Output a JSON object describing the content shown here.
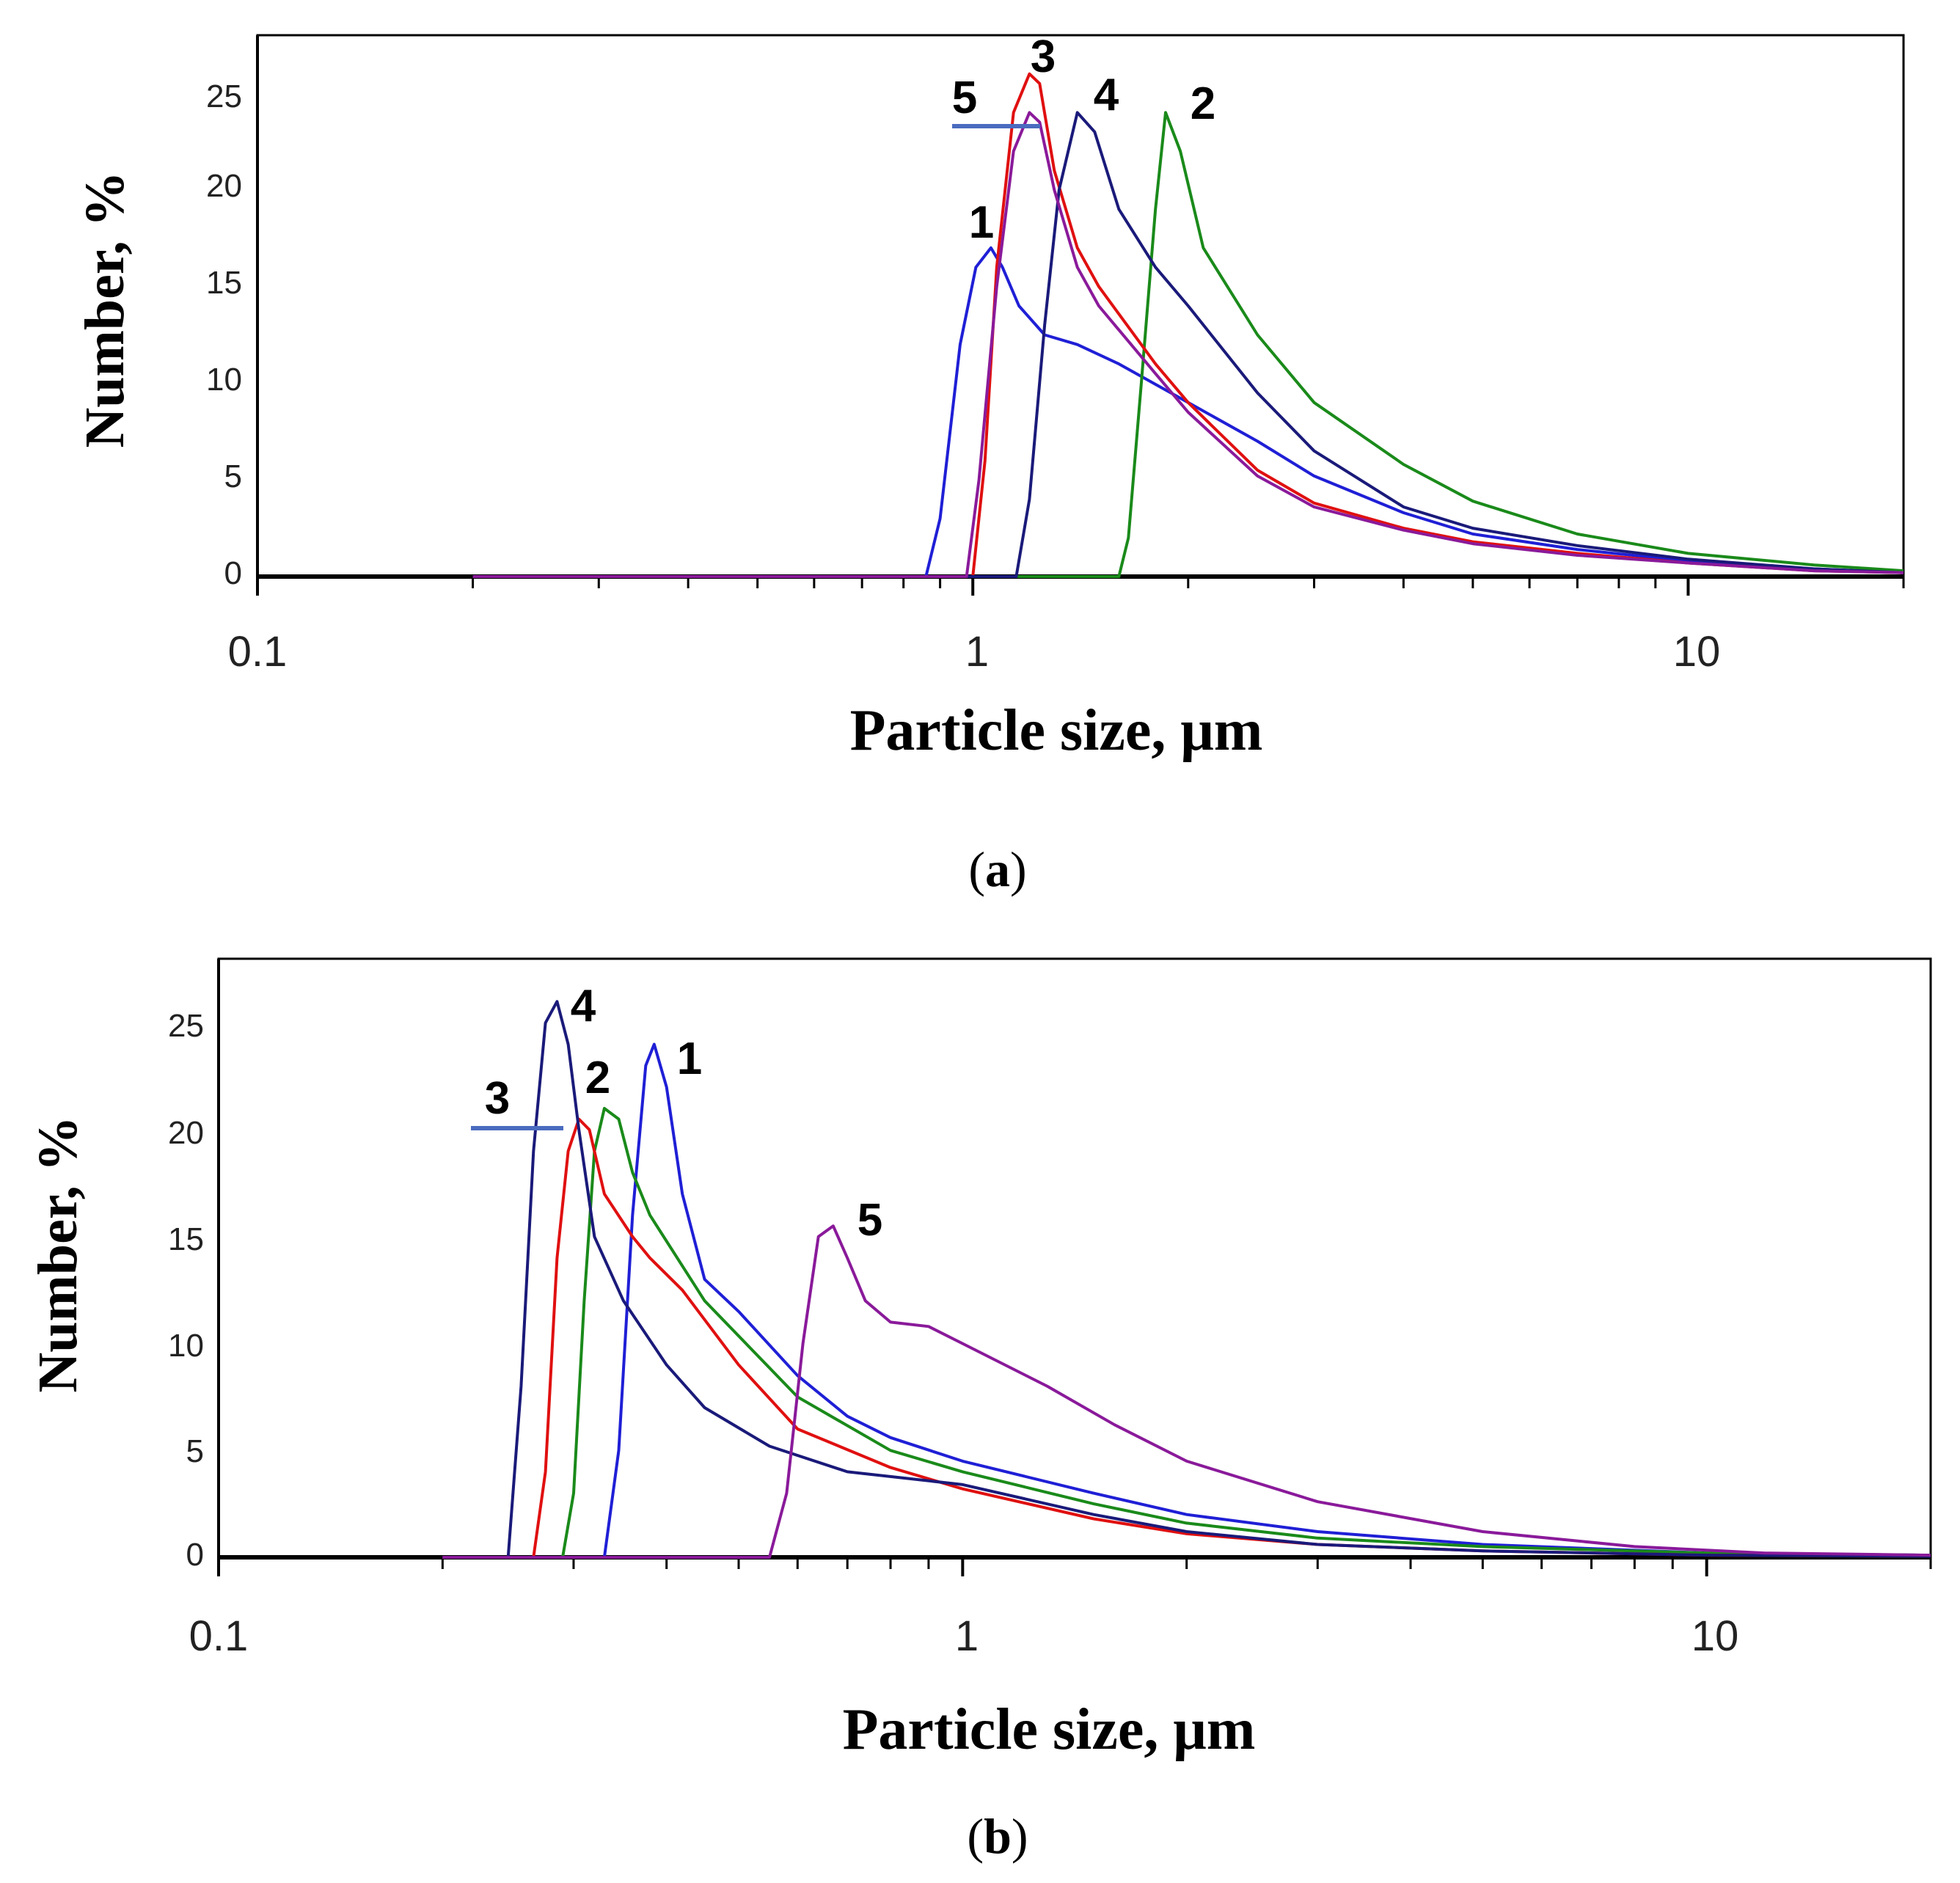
{
  "chart_data": [
    {
      "panel": "a",
      "panel_label": "(a)",
      "panel_label_parts": [
        "(",
        "a",
        ")"
      ],
      "type": "line",
      "xscale": "log",
      "xlabel": "Particle size, μm",
      "ylabel": "Number, %",
      "xlim": [
        0.1,
        20
      ],
      "ylim": [
        0,
        28
      ],
      "xticks": [
        0.1,
        1,
        10
      ],
      "xtick_labels": [
        "0.1",
        "1",
        "10"
      ],
      "yticks": [
        0,
        5,
        10,
        15,
        20,
        25
      ],
      "ytick_labels": [
        "0",
        "5",
        "10",
        "15",
        "20",
        "25"
      ],
      "series": [
        {
          "name": "1",
          "color": "#1f1fd6",
          "x": [
            0.2,
            0.86,
            0.9,
            0.96,
            1.01,
            1.06,
            1.1,
            1.16,
            1.26,
            1.4,
            1.6,
            2.0,
            2.5,
            3.0,
            4.0,
            5.0,
            7.0,
            10,
            15,
            20
          ],
          "y": [
            0,
            0,
            3,
            12,
            16,
            17,
            16,
            14,
            12.5,
            12,
            11,
            9,
            7,
            5.2,
            3.3,
            2.2,
            1.4,
            0.8,
            0.4,
            0.2
          ]
        },
        {
          "name": "2",
          "color": "#1a8a1a",
          "x": [
            0.2,
            1.6,
            1.65,
            1.72,
            1.8,
            1.86,
            1.95,
            2.1,
            2.5,
            3.0,
            4.0,
            5.0,
            7.0,
            10,
            15,
            20
          ],
          "y": [
            0,
            0,
            2,
            10,
            19,
            24,
            22,
            17,
            12.5,
            9,
            5.8,
            3.9,
            2.2,
            1.2,
            0.6,
            0.3
          ]
        },
        {
          "name": "3",
          "color": "#e01010",
          "x": [
            0.2,
            1.0,
            1.04,
            1.08,
            1.14,
            1.2,
            1.24,
            1.3,
            1.4,
            1.5,
            1.8,
            2.0,
            2.5,
            3.0,
            4.0,
            5.0,
            7.0,
            10,
            15,
            20
          ],
          "y": [
            0,
            0,
            6,
            16,
            24,
            26,
            25.5,
            21,
            17,
            15,
            11,
            9,
            5.5,
            3.8,
            2.5,
            1.8,
            1.2,
            0.7,
            0.3,
            0.2
          ]
        },
        {
          "name": "4",
          "color": "#1a1a7a",
          "x": [
            0.2,
            1.15,
            1.2,
            1.26,
            1.32,
            1.4,
            1.48,
            1.6,
            1.8,
            2.0,
            2.5,
            3.0,
            4.0,
            5.0,
            7.0,
            10,
            15,
            20
          ],
          "y": [
            0,
            0,
            4,
            13,
            20,
            24,
            23,
            19,
            16,
            14,
            9.5,
            6.5,
            3.6,
            2.5,
            1.6,
            0.9,
            0.4,
            0.2
          ]
        },
        {
          "name": "5",
          "color": "#8a1a9a",
          "x": [
            0.2,
            0.98,
            1.02,
            1.08,
            1.14,
            1.2,
            1.24,
            1.3,
            1.4,
            1.5,
            1.8,
            2.0,
            2.5,
            3.0,
            4.0,
            5.0,
            7.0,
            10,
            15,
            20
          ],
          "y": [
            0,
            0,
            5,
            15,
            22,
            24,
            23.5,
            20,
            16,
            14,
            10.5,
            8.5,
            5.2,
            3.6,
            2.4,
            1.7,
            1.1,
            0.7,
            0.3,
            0.2
          ]
        }
      ],
      "annotations": [
        "1",
        "2",
        "3",
        "4",
        "5"
      ]
    },
    {
      "panel": "b",
      "panel_label": "(b)",
      "panel_label_parts": [
        "(",
        "b",
        ")"
      ],
      "type": "line",
      "xscale": "log",
      "xlabel": "Particle size, μm",
      "ylabel": "Number, %",
      "xlim": [
        0.1,
        20
      ],
      "ylim": [
        0,
        28
      ],
      "xticks": [
        0.1,
        1,
        10
      ],
      "xtick_labels": [
        "0.1",
        "1",
        "10"
      ],
      "yticks": [
        0,
        5,
        10,
        15,
        20,
        25
      ],
      "ytick_labels": [
        "0",
        "5",
        "10",
        "15",
        "20",
        "25"
      ],
      "series": [
        {
          "name": "1",
          "color": "#1f1fd6",
          "x": [
            0.2,
            0.33,
            0.345,
            0.36,
            0.375,
            0.385,
            0.4,
            0.42,
            0.45,
            0.5,
            0.6,
            0.7,
            0.8,
            1.0,
            1.5,
            2.0,
            3.0,
            5.0,
            10,
            20
          ],
          "y": [
            0,
            0,
            5,
            16,
            23,
            24,
            22,
            17,
            13,
            11.5,
            8.5,
            6.6,
            5.6,
            4.5,
            3.0,
            2.0,
            1.2,
            0.6,
            0.2,
            0.1
          ]
        },
        {
          "name": "2",
          "color": "#1a8a1a",
          "x": [
            0.2,
            0.29,
            0.3,
            0.31,
            0.32,
            0.33,
            0.345,
            0.36,
            0.38,
            0.45,
            0.6,
            0.8,
            1.0,
            1.5,
            2.0,
            3.0,
            5.0,
            10,
            20
          ],
          "y": [
            0,
            0,
            3,
            12,
            19,
            21,
            20.5,
            18,
            16,
            12,
            7.5,
            5,
            4,
            2.5,
            1.6,
            0.9,
            0.5,
            0.2,
            0.1
          ]
        },
        {
          "name": "3",
          "color": "#e01010",
          "x": [
            0.2,
            0.265,
            0.275,
            0.285,
            0.295,
            0.305,
            0.315,
            0.33,
            0.36,
            0.38,
            0.42,
            0.5,
            0.6,
            0.8,
            1.0,
            1.5,
            2.0,
            3.0,
            5.0,
            10,
            20
          ],
          "y": [
            0,
            0,
            4,
            14,
            19,
            20.5,
            20,
            17,
            15,
            14,
            12.5,
            9,
            6,
            4.2,
            3.2,
            1.8,
            1.1,
            0.6,
            0.3,
            0.1,
            0.05
          ]
        },
        {
          "name": "4",
          "color": "#1a1a7a",
          "x": [
            0.2,
            0.245,
            0.255,
            0.265,
            0.275,
            0.285,
            0.295,
            0.305,
            0.32,
            0.35,
            0.4,
            0.45,
            0.55,
            0.7,
            1.0,
            1.5,
            2.0,
            3.0,
            5.0,
            10,
            20
          ],
          "y": [
            0,
            0,
            8,
            19,
            25,
            26,
            24,
            20,
            15,
            12,
            9,
            7,
            5.2,
            4,
            3.4,
            2.0,
            1.2,
            0.6,
            0.3,
            0.1,
            0.05
          ]
        },
        {
          "name": "5",
          "color": "#8a1a9a",
          "x": [
            0.2,
            0.55,
            0.58,
            0.61,
            0.64,
            0.67,
            0.7,
            0.74,
            0.8,
            0.9,
            1.0,
            1.3,
            1.6,
            2.0,
            3.0,
            5.0,
            8.0,
            12,
            20
          ],
          "y": [
            0,
            0,
            3,
            10,
            15,
            15.5,
            14,
            12,
            11,
            10.8,
            10,
            8,
            6.2,
            4.5,
            2.6,
            1.2,
            0.5,
            0.2,
            0.1
          ]
        }
      ],
      "annotations": [
        "1",
        "2",
        "3",
        "4",
        "5"
      ]
    }
  ]
}
